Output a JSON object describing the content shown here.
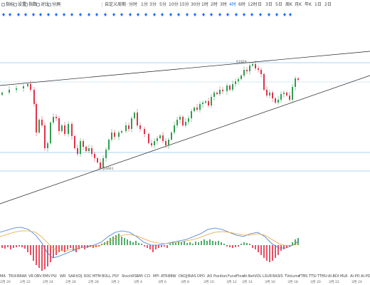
{
  "toolbar": {
    "tools": [
      {
        "label": "指标",
        "icon": "indicator-icon"
      },
      {
        "label": "设置",
        "icon": "gear-icon"
      },
      {
        "label": "指数",
        "icon": "index-icon"
      },
      {
        "label": "对比",
        "icon": "compare-icon"
      },
      {
        "label": "分屏",
        "icon": "split-screen-icon"
      }
    ],
    "custom_period_label": "自定义周期 ·",
    "timeframes": [
      "分时",
      "1分",
      "3分",
      "5分",
      "10分",
      "15分",
      "30分",
      "1时",
      "2时",
      "3时",
      "4时",
      "6时",
      "12时",
      "日",
      "3日",
      "5日",
      "周K",
      "月K",
      "年K",
      "1日",
      "2日"
    ],
    "active_timeframe": "4时"
  },
  "colors": {
    "up": "#2f9e4f",
    "down": "#e0334a",
    "dot": "#1677ff",
    "gridline": "#5aa9e6",
    "trendline": "#222222",
    "ma_blue": "#3b7bd9",
    "ma_orange": "#e8a33a"
  },
  "price_labels": {
    "high": "61929",
    "low": "53661"
  },
  "indicator_tabs": [
    "MA",
    "TRIX",
    "BRAR",
    "VR",
    "OBV",
    "EMV",
    "PSI",
    "WR",
    "SAR",
    "KDJ",
    "ROC",
    "MTM",
    "BOLL",
    "PSY",
    "StochRSI",
    "SMI",
    "CCI",
    "MFI",
    "ATR",
    "BBW",
    "DKQJ",
    "BIAS",
    "DPO",
    "AO",
    "Position",
    "FundFlow",
    "AI-NetVOL",
    "LSUR",
    "BASIS",
    "TVolume",
    "FTBS",
    "TTSI",
    "TTMU",
    "AI-BDI",
    "MLR",
    "AI-PD",
    "AI-PD"
  ],
  "date_labels": [
    "2月 20",
    "2月 22",
    "2月 24",
    "2月 26",
    "2月 28",
    "3月 2",
    "3月 4",
    "3月 6",
    "3月 8",
    "3月 10",
    "3月 12",
    "3月 14",
    "3月 16",
    "3月 18",
    "3月 20",
    "3月 22",
    "3月 24"
  ]
}
